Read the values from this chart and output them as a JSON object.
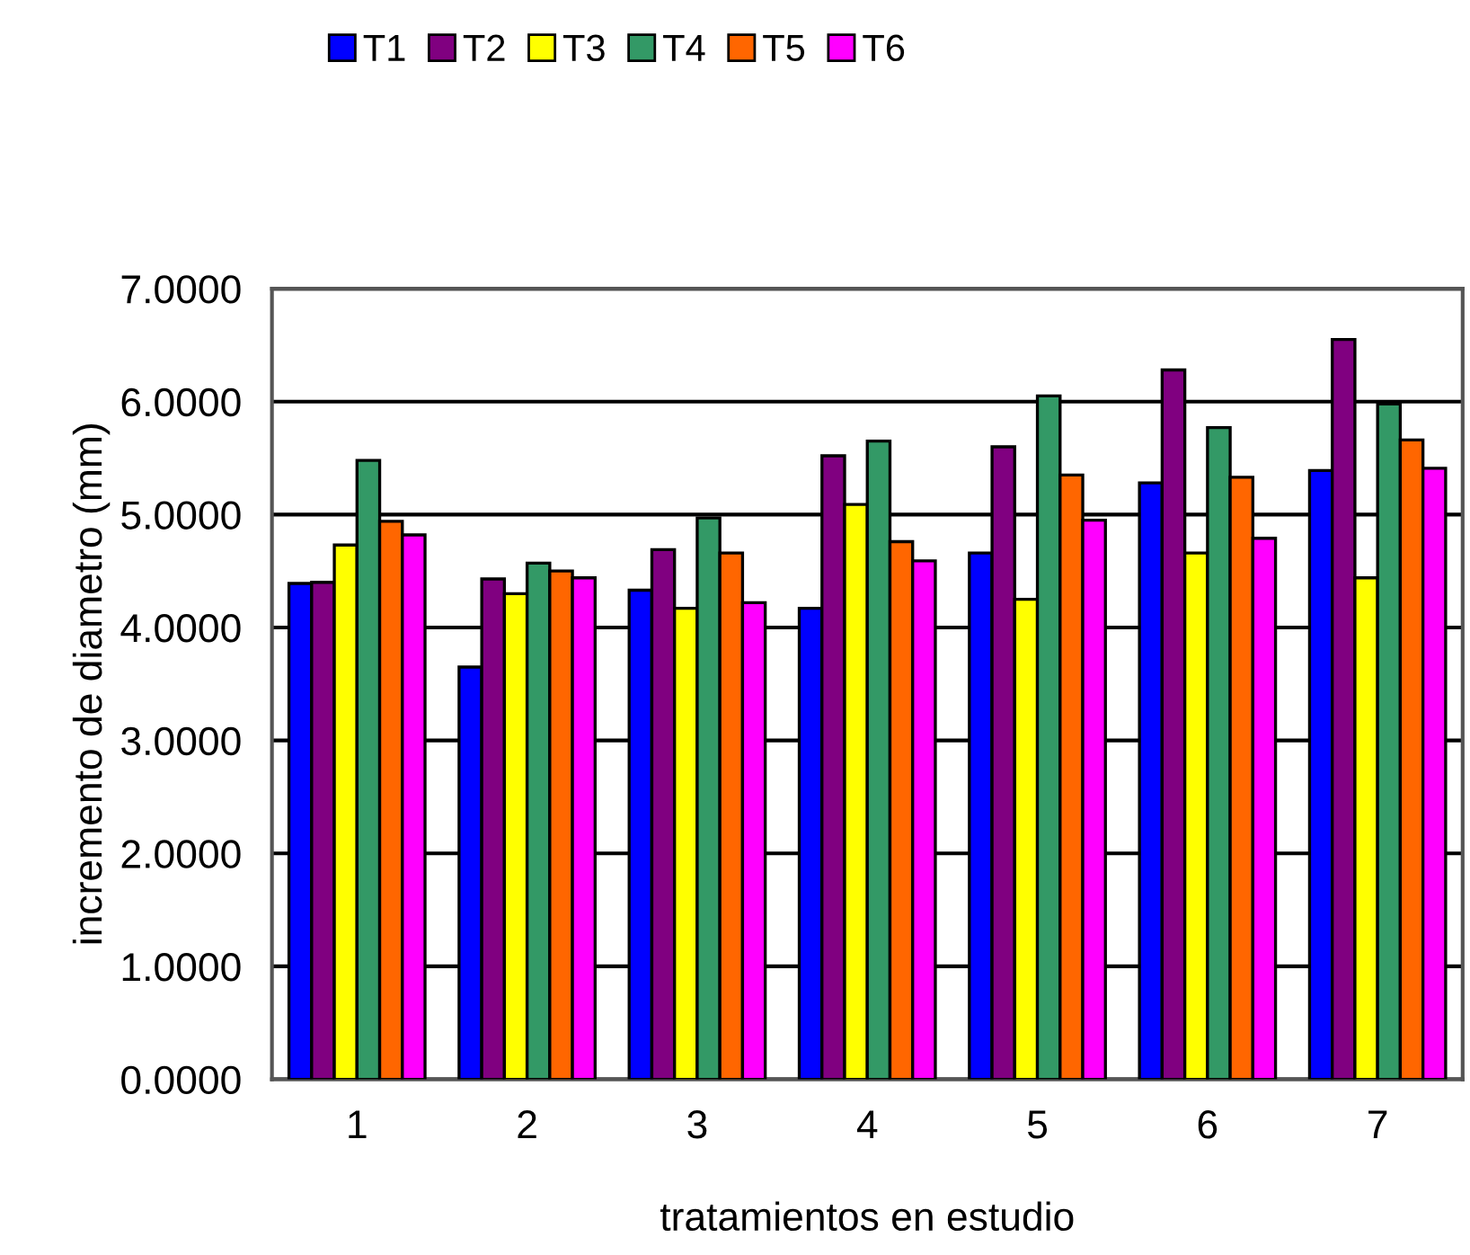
{
  "chart_data": {
    "type": "bar",
    "xlabel": "tratamientos en estudio",
    "ylabel": "incremento de diametro (mm)",
    "categories": [
      "1",
      "2",
      "3",
      "4",
      "5",
      "6",
      "7"
    ],
    "series": [
      {
        "name": "T1",
        "color": "#0000ff",
        "values": [
          4.39,
          3.65,
          4.33,
          4.17,
          4.66,
          5.28,
          5.39
        ]
      },
      {
        "name": "T2",
        "color": "#800080",
        "values": [
          4.4,
          4.43,
          4.69,
          5.52,
          5.6,
          6.28,
          6.55
        ]
      },
      {
        "name": "T3",
        "color": "#ffff00",
        "values": [
          4.73,
          4.3,
          4.17,
          5.09,
          4.25,
          4.66,
          4.44
        ]
      },
      {
        "name": "T4",
        "color": "#339966",
        "values": [
          5.48,
          4.57,
          4.97,
          5.65,
          6.05,
          5.77,
          5.98
        ]
      },
      {
        "name": "T5",
        "color": "#ff6600",
        "values": [
          4.94,
          4.5,
          4.66,
          4.76,
          5.35,
          5.33,
          5.66
        ]
      },
      {
        "name": "T6",
        "color": "#ff00ff",
        "values": [
          4.82,
          4.44,
          4.22,
          4.59,
          4.95,
          4.79,
          5.41
        ]
      }
    ],
    "ylim": [
      0,
      7
    ],
    "yticks": [
      {
        "value": 0,
        "label": "0.0000"
      },
      {
        "value": 1,
        "label": "1.0000"
      },
      {
        "value": 2,
        "label": "2.0000"
      },
      {
        "value": 3,
        "label": "3.0000"
      },
      {
        "value": 4,
        "label": "4.0000"
      },
      {
        "value": 5,
        "label": "5.0000"
      },
      {
        "value": 6,
        "label": "6.0000"
      },
      {
        "value": 7,
        "label": "7.0000"
      }
    ],
    "grid": "y",
    "legend": "top"
  }
}
